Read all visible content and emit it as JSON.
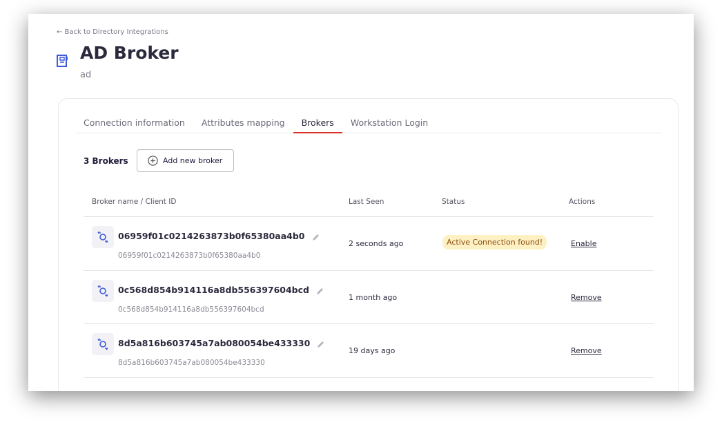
{
  "nav": {
    "back_label": "← Back to Directory Integrations"
  },
  "header": {
    "title": "AD Broker",
    "subtitle": "ad",
    "icon": "directory-book-icon"
  },
  "tabs": [
    {
      "label": "Connection information"
    },
    {
      "label": "Attributes mapping"
    },
    {
      "label": "Brokers",
      "active": true
    },
    {
      "label": "Workstation Login"
    }
  ],
  "brokers": {
    "count_label": "3 Brokers",
    "add_label": "Add new broker",
    "columns": [
      "Broker name / Client ID",
      "Last Seen",
      "Status",
      "Actions"
    ],
    "rows": [
      {
        "name": "06959f01c0214263873b0f65380aa4b0",
        "client_id": "06959f01c0214263873b0f65380aa4b0",
        "last_seen": "2 seconds ago",
        "status": "Active Connection found!",
        "action": "Enable"
      },
      {
        "name": "0c568d854b914116a8db556397604bcd",
        "client_id": "0c568d854b914116a8db556397604bcd",
        "last_seen": "1 month ago",
        "status": "",
        "action": "Remove"
      },
      {
        "name": "8d5a816b603745a7ab080054be433330",
        "client_id": "8d5a816b603745a7ab080054be433330",
        "last_seen": "19 days ago",
        "status": "",
        "action": "Remove"
      }
    ]
  },
  "colors": {
    "accent": "#3f5bd9",
    "tab_underline": "#d9302c",
    "badge_bg": "#fdf1c3",
    "badge_text": "#8a4b0e"
  }
}
